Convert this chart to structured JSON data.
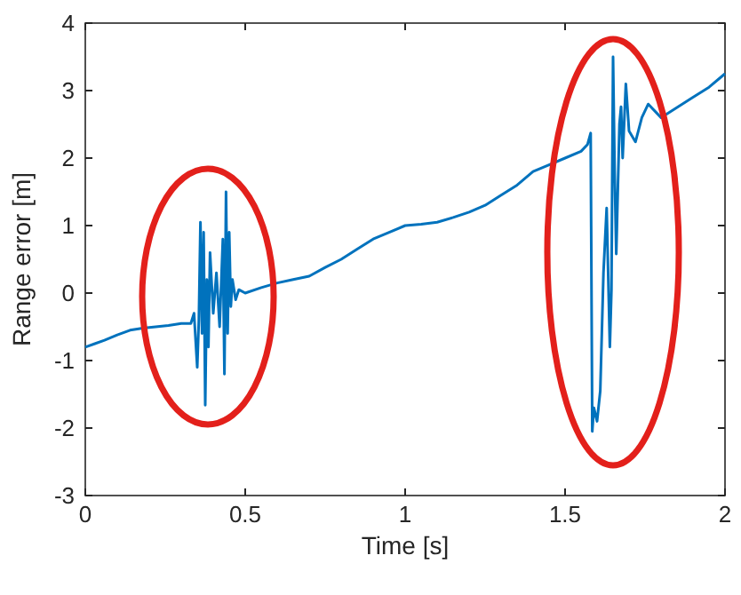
{
  "chart_data": {
    "type": "line",
    "xlabel": "Time [s]",
    "ylabel": "Range error [m]",
    "xlim": [
      0,
      2
    ],
    "ylim": [
      -3,
      4
    ],
    "xticks": [
      0,
      0.5,
      1,
      1.5,
      2
    ],
    "yticks": [
      -3,
      -2,
      -1,
      0,
      1,
      2,
      3,
      4
    ],
    "grid": false,
    "marker": "none",
    "line_style": "solid",
    "series": [
      {
        "color": "#0072bd",
        "x": [
          0,
          0.03,
          0.06,
          0.1,
          0.14,
          0.18,
          0.22,
          0.26,
          0.3,
          0.33,
          0.34,
          0.35,
          0.355,
          0.36,
          0.365,
          0.37,
          0.375,
          0.38,
          0.385,
          0.39,
          0.4,
          0.41,
          0.42,
          0.43,
          0.435,
          0.44,
          0.445,
          0.45,
          0.455,
          0.46,
          0.47,
          0.48,
          0.5,
          0.55,
          0.6,
          0.65,
          0.7,
          0.75,
          0.8,
          0.85,
          0.9,
          0.95,
          1.0,
          1.05,
          1.1,
          1.15,
          1.2,
          1.25,
          1.3,
          1.35,
          1.4,
          1.45,
          1.5,
          1.55,
          1.57,
          1.58,
          1.585,
          1.59,
          1.6,
          1.61,
          1.62,
          1.63,
          1.64,
          1.645,
          1.65,
          1.655,
          1.66,
          1.67,
          1.675,
          1.68,
          1.69,
          1.7,
          1.72,
          1.74,
          1.76,
          1.8,
          1.85,
          1.9,
          1.95,
          2.0
        ],
        "values": [
          -0.8,
          -0.75,
          -0.7,
          -0.62,
          -0.55,
          -0.52,
          -0.5,
          -0.48,
          -0.45,
          -0.45,
          -0.3,
          -1.1,
          -0.4,
          1.05,
          -0.6,
          0.9,
          -1.66,
          0.2,
          -0.8,
          0.6,
          -0.3,
          0.3,
          -0.5,
          0.8,
          -1.2,
          1.5,
          -0.6,
          0.9,
          -0.2,
          0.2,
          -0.1,
          0.05,
          0,
          0.08,
          0.15,
          0.2,
          0.25,
          0.38,
          0.5,
          0.65,
          0.8,
          0.9,
          1.0,
          1.02,
          1.05,
          1.12,
          1.2,
          1.3,
          1.45,
          1.6,
          1.8,
          1.9,
          2.0,
          2.1,
          2.2,
          2.37,
          -2.05,
          -1.7,
          -1.9,
          -1.45,
          0.3,
          1.26,
          -0.8,
          0.05,
          3.5,
          1.8,
          0.58,
          2.5,
          2.76,
          2.0,
          3.1,
          2.4,
          2.24,
          2.6,
          2.8,
          2.6,
          2.75,
          2.9,
          3.05,
          3.25
        ]
      }
    ]
  }
}
